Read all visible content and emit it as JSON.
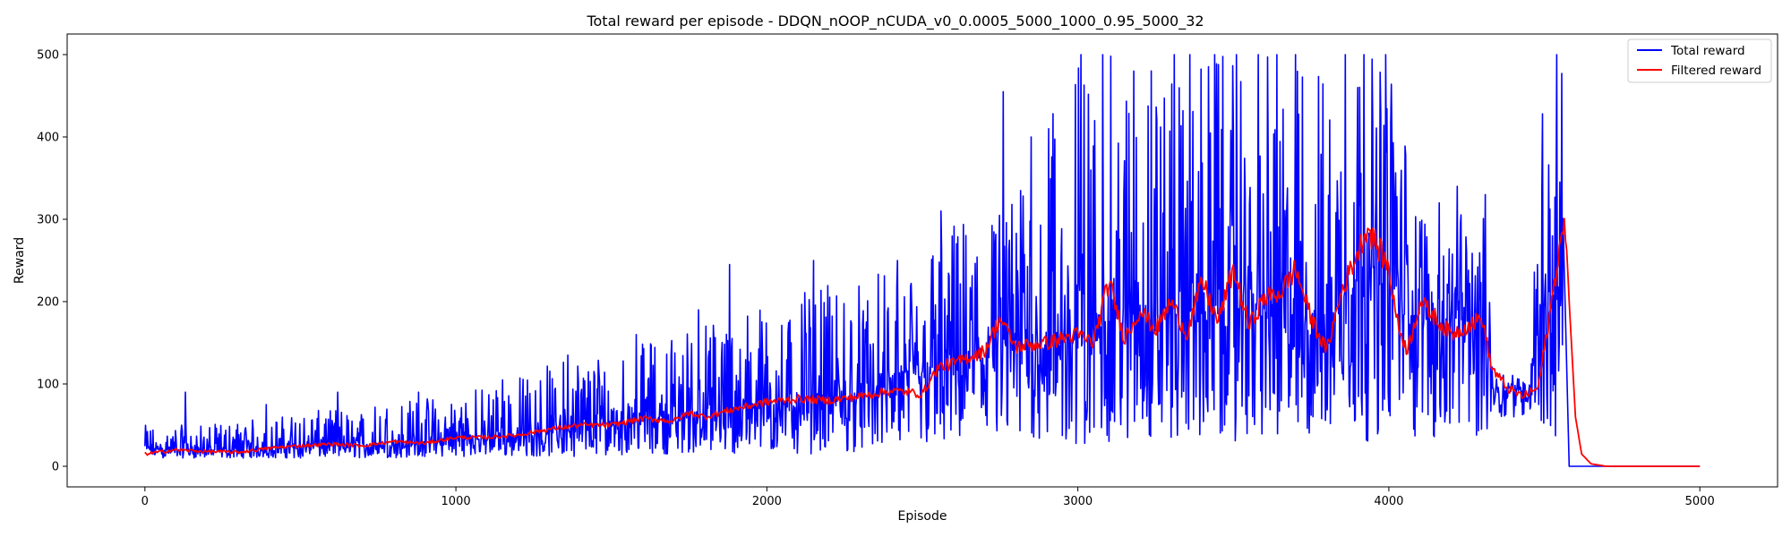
{
  "chart_data": {
    "type": "line",
    "title": "Total reward per episode - DDQN_nOOP_nCUDA_v0_0.0005_5000_1000_0.95_5000_32",
    "xlabel": "Episode",
    "ylabel": "Reward",
    "xlim": [
      -250,
      5250
    ],
    "ylim": [
      -25,
      525
    ],
    "xticks": [
      0,
      1000,
      2000,
      3000,
      4000,
      5000
    ],
    "yticks": [
      0,
      100,
      200,
      300,
      400,
      500
    ],
    "grid": false,
    "legend_position": "top-right",
    "series": [
      {
        "name": "Total reward",
        "color": "#0000ff",
        "band": {
          "x": [
            0,
            200,
            400,
            600,
            800,
            1000,
            1200,
            1400,
            1600,
            1800,
            2000,
            2200,
            2400,
            2600,
            2800,
            3000,
            3200,
            3400,
            3600,
            3800,
            3900,
            4000,
            4100,
            4200,
            4300,
            4350,
            4450,
            4500,
            4560,
            4580
          ],
          "low": [
            10,
            10,
            10,
            10,
            10,
            12,
            12,
            12,
            15,
            15,
            15,
            15,
            20,
            20,
            25,
            25,
            30,
            30,
            30,
            30,
            30,
            30,
            30,
            30,
            30,
            60,
            60,
            30,
            30,
            0
          ],
          "high": [
            50,
            50,
            60,
            70,
            80,
            90,
            110,
            140,
            150,
            180,
            200,
            220,
            240,
            300,
            330,
            500,
            500,
            500,
            500,
            500,
            500,
            500,
            320,
            320,
            320,
            120,
            110,
            500,
            500,
            0
          ],
          "mean": [
            20,
            18,
            20,
            25,
            25,
            30,
            35,
            42,
            55,
            60,
            70,
            75,
            90,
            120,
            145,
            150,
            165,
            175,
            180,
            150,
            220,
            220,
            175,
            175,
            165,
            95,
            90,
            190,
            200,
            0
          ]
        },
        "spikes": [
          {
            "x": 130,
            "y": 90
          },
          {
            "x": 390,
            "y": 75
          },
          {
            "x": 620,
            "y": 90
          },
          {
            "x": 880,
            "y": 90
          },
          {
            "x": 1150,
            "y": 105
          },
          {
            "x": 1360,
            "y": 135
          },
          {
            "x": 1580,
            "y": 160
          },
          {
            "x": 1780,
            "y": 190
          },
          {
            "x": 1880,
            "y": 245
          },
          {
            "x": 2150,
            "y": 250
          },
          {
            "x": 2420,
            "y": 250
          },
          {
            "x": 2560,
            "y": 310
          },
          {
            "x": 2760,
            "y": 455
          },
          {
            "x": 2850,
            "y": 400
          },
          {
            "x": 3010,
            "y": 500
          },
          {
            "x": 3080,
            "y": 500
          },
          {
            "x": 3180,
            "y": 480
          },
          {
            "x": 3310,
            "y": 500
          },
          {
            "x": 3360,
            "y": 500
          },
          {
            "x": 3440,
            "y": 500
          },
          {
            "x": 3510,
            "y": 500
          },
          {
            "x": 3580,
            "y": 500
          },
          {
            "x": 3640,
            "y": 500
          },
          {
            "x": 3700,
            "y": 500
          },
          {
            "x": 3860,
            "y": 500
          },
          {
            "x": 3920,
            "y": 500
          },
          {
            "x": 3990,
            "y": 500
          },
          {
            "x": 4220,
            "y": 340
          },
          {
            "x": 4310,
            "y": 330
          },
          {
            "x": 4540,
            "y": 500
          },
          {
            "x": 4570,
            "y": 500
          }
        ],
        "end_points": [
          [
            4580,
            0
          ],
          [
            5000,
            0
          ]
        ]
      },
      {
        "name": "Filtered reward",
        "color": "#ff0000",
        "x": [
          0,
          100,
          200,
          300,
          400,
          500,
          600,
          700,
          800,
          900,
          1000,
          1100,
          1200,
          1300,
          1400,
          1500,
          1600,
          1700,
          1750,
          1800,
          1900,
          2000,
          2100,
          2200,
          2300,
          2400,
          2500,
          2550,
          2600,
          2700,
          2750,
          2800,
          2900,
          3000,
          3050,
          3100,
          3150,
          3200,
          3250,
          3300,
          3350,
          3400,
          3450,
          3500,
          3550,
          3600,
          3650,
          3700,
          3750,
          3800,
          3850,
          3900,
          3930,
          3960,
          4000,
          4030,
          4060,
          4100,
          4150,
          4200,
          4250,
          4300,
          4330,
          4380,
          4430,
          4480,
          4520,
          4550,
          4570,
          4580,
          4600,
          4620,
          4650,
          4700,
          4800,
          5000
        ],
        "y": [
          15,
          20,
          18,
          17,
          22,
          25,
          27,
          25,
          30,
          28,
          35,
          35,
          38,
          45,
          50,
          50,
          58,
          55,
          65,
          60,
          70,
          78,
          82,
          80,
          85,
          92,
          88,
          120,
          125,
          140,
          180,
          145,
          150,
          160,
          150,
          225,
          155,
          190,
          165,
          200,
          160,
          225,
          175,
          240,
          170,
          205,
          210,
          240,
          180,
          140,
          215,
          260,
          290,
          270,
          240,
          170,
          140,
          200,
          180,
          160,
          170,
          180,
          120,
          95,
          85,
          95,
          190,
          270,
          290,
          200,
          60,
          15,
          3,
          0,
          0,
          0
        ]
      }
    ]
  }
}
